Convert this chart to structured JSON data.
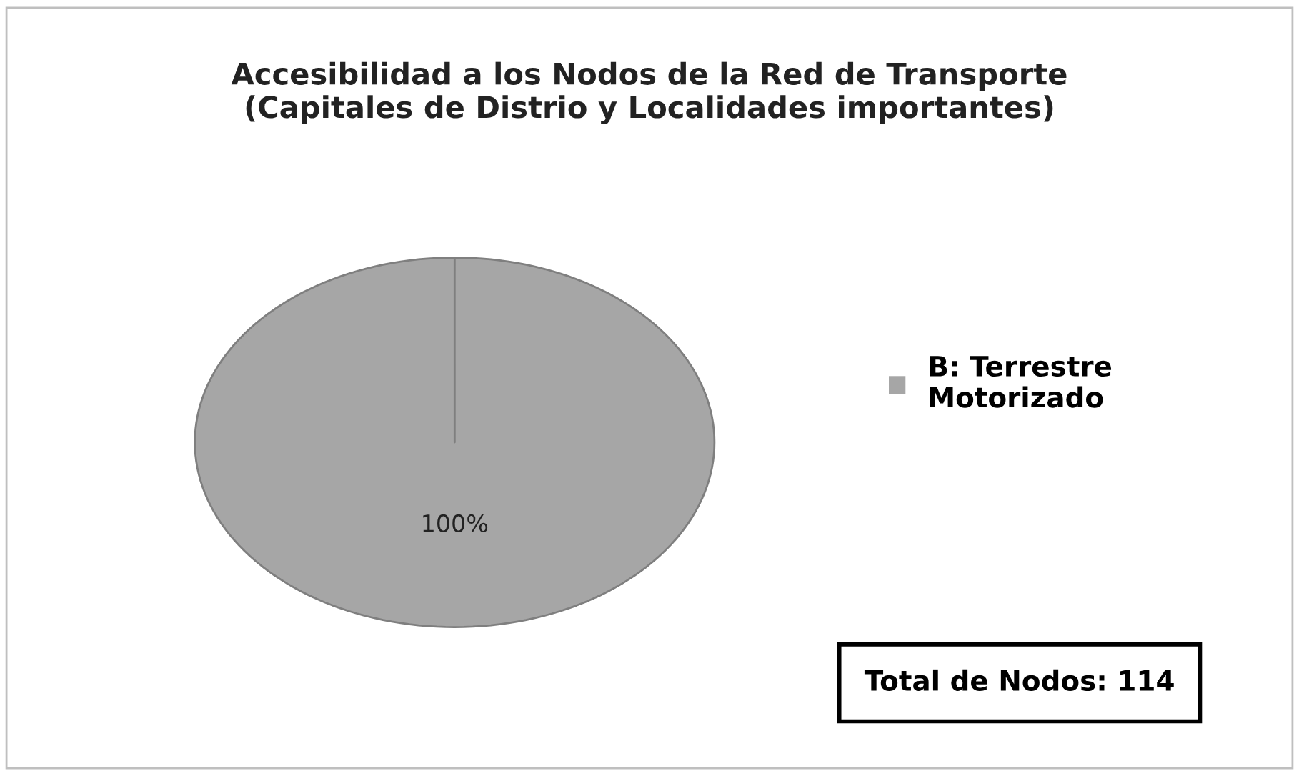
{
  "chart_data": {
    "type": "pie",
    "title": "Accesibilidad a los Nodos de la Red de Transporte\n(Capitales de Distrio y Localidades importantes)",
    "categories": [
      "B: Terrestre\nMotorizado"
    ],
    "values": [
      100
    ],
    "colors": [
      "#a6a6a6"
    ],
    "value_labels": [
      "100%"
    ],
    "legend": "right",
    "annotations": [
      "Total de Nodos: 114"
    ]
  }
}
